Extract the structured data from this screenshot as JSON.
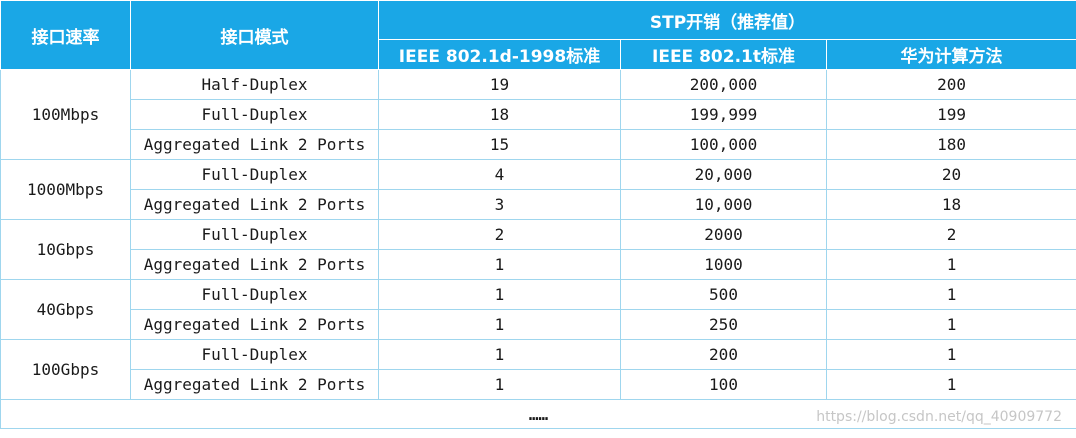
{
  "header": {
    "speed": "接口速率",
    "mode": "接口模式",
    "stp_cost": "STP开销（推荐值）",
    "ieee_1998": "IEEE 802.1d-1998标准",
    "ieee_1t": "IEEE 802.1t标准",
    "huawei": "华为计算方法"
  },
  "groups": [
    {
      "speed": "100Mbps",
      "rows": [
        {
          "mode": "Half-Duplex",
          "d1998": "19",
          "t": "200,000",
          "huawei": "200"
        },
        {
          "mode": "Full-Duplex",
          "d1998": "18",
          "t": "199,999",
          "huawei": "199"
        },
        {
          "mode": "Aggregated Link 2 Ports",
          "d1998": "15",
          "t": "100,000",
          "huawei": "180"
        }
      ]
    },
    {
      "speed": "1000Mbps",
      "rows": [
        {
          "mode": "Full-Duplex",
          "d1998": "4",
          "t": "20,000",
          "huawei": "20"
        },
        {
          "mode": "Aggregated Link 2 Ports",
          "d1998": "3",
          "t": "10,000",
          "huawei": "18"
        }
      ]
    },
    {
      "speed": "10Gbps",
      "rows": [
        {
          "mode": "Full-Duplex",
          "d1998": "2",
          "t": "2000",
          "huawei": "2"
        },
        {
          "mode": "Aggregated Link 2 Ports",
          "d1998": "1",
          "t": "1000",
          "huawei": "1"
        }
      ]
    },
    {
      "speed": "40Gbps",
      "rows": [
        {
          "mode": "Full-Duplex",
          "d1998": "1",
          "t": "500",
          "huawei": "1"
        },
        {
          "mode": "Aggregated Link 2 Ports",
          "d1998": "1",
          "t": "250",
          "huawei": "1"
        }
      ]
    },
    {
      "speed": "100Gbps",
      "rows": [
        {
          "mode": "Full-Duplex",
          "d1998": "1",
          "t": "200",
          "huawei": "1"
        },
        {
          "mode": "Aggregated Link 2 Ports",
          "d1998": "1",
          "t": "100",
          "huawei": "1"
        }
      ]
    }
  ],
  "footer": "……",
  "watermark": "https://blog.csdn.net/qq_40909772",
  "colors": {
    "header_bg": "#1aa7e6",
    "border": "#9fd6ee"
  }
}
